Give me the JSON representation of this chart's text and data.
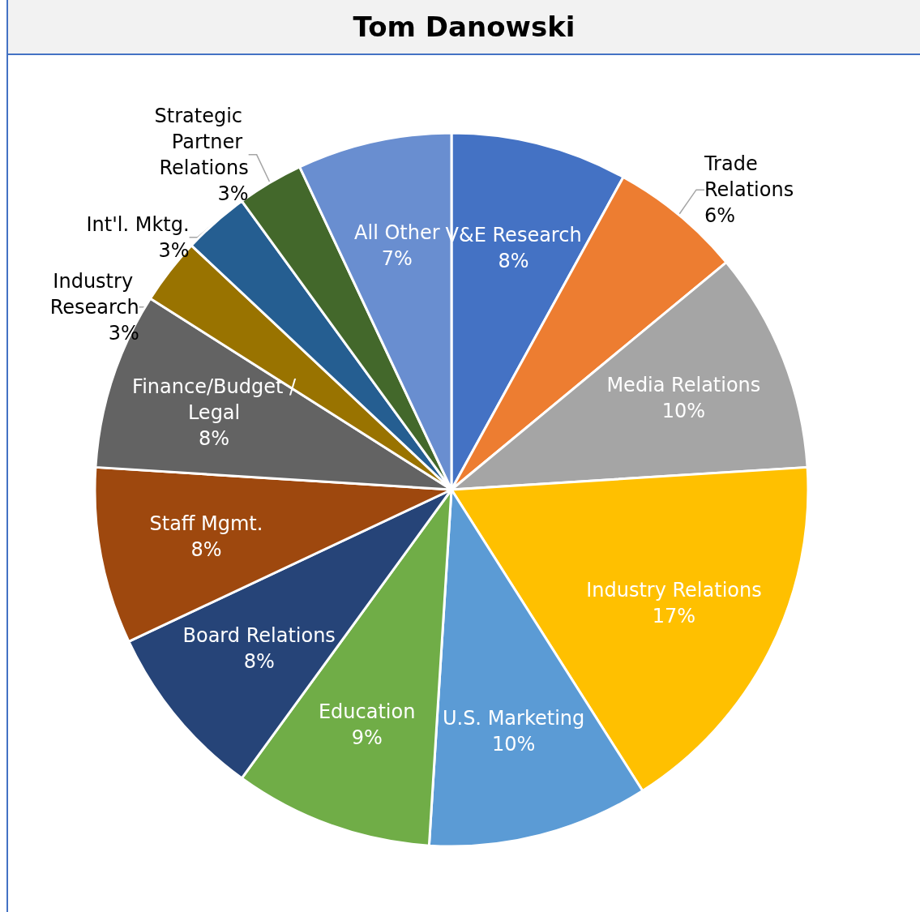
{
  "chart_data": {
    "type": "pie",
    "title": "Tom Danowski",
    "categories": [
      "V&E Research",
      "Trade Relations",
      "Media Relations",
      "Industry Relations",
      "U.S. Marketing",
      "Education",
      "Board Relations",
      "Staff Mgmt.",
      "Finance/Budget /Legal",
      "Industry Research",
      "Int'l. Mktg.",
      "Strategic Partner Relations",
      "All Other"
    ],
    "values": [
      8,
      6,
      10,
      17,
      10,
      9,
      8,
      8,
      8,
      3,
      3,
      3,
      7
    ],
    "value_labels": [
      "8%",
      "6%",
      "10%",
      "17%",
      "10%",
      "9%",
      "8%",
      "8%",
      "8%",
      "3%",
      "3%",
      "3%",
      "7%"
    ],
    "colors": [
      "#4472c4",
      "#ed7d31",
      "#a5a5a5",
      "#ffc000",
      "#5b9bd5",
      "#70ad47",
      "#264478",
      "#9e480e",
      "#636363",
      "#997300",
      "#255e91",
      "#43682b",
      "#698ed0"
    ],
    "legend": false
  }
}
